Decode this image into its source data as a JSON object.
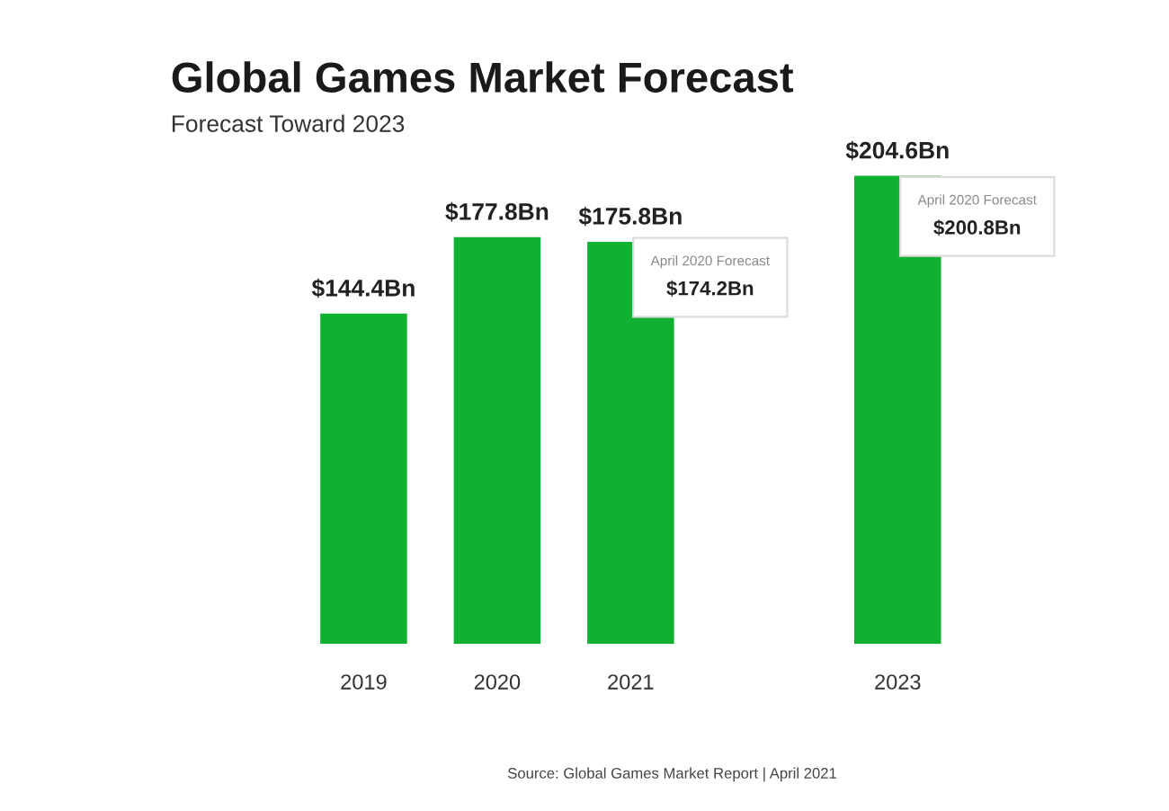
{
  "chart_data": {
    "type": "bar",
    "title": "Global Games Market Forecast",
    "subtitle": "Forecast Toward 2023",
    "categories": [
      "2019",
      "2020",
      "2021",
      null,
      "2023"
    ],
    "values": [
      144.4,
      177.8,
      175.8,
      null,
      204.6
    ],
    "color": "#10b030",
    "value_labels": [
      "$144.4Bn",
      "$177.8Bn",
      "$175.8Bn",
      null,
      "$204.6Bn"
    ],
    "tick_labels": "x",
    "annotations": [
      {
        "text": "April 2020 Forecast\n$174.2Bn",
        "x": "2021",
        "y": 174.2
      },
      {
        "text": "April 2020 Forecast\n$200.8Bn",
        "x": "2023",
        "y": 200.8
      },
      "Source: Global Games Market Report | April 2021"
    ]
  }
}
